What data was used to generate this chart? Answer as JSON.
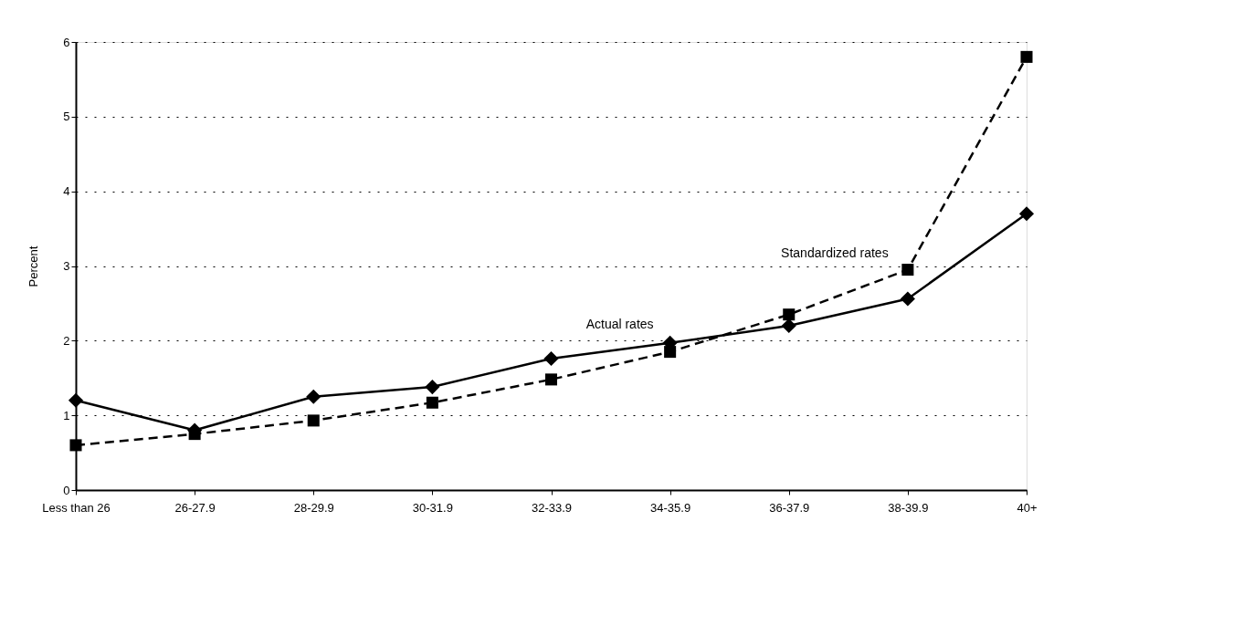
{
  "chart_data": {
    "type": "line",
    "ylabel": "Percent",
    "categories": [
      "Less than 26",
      "26-27.9",
      "28-29.9",
      "30-31.9",
      "32-33.9",
      "34-35.9",
      "36-37.9",
      "38-39.9",
      "40+"
    ],
    "series": [
      {
        "name": "Actual rates",
        "color": "#000000",
        "marker": "diamond",
        "line_style": "solid",
        "values": [
          1.2,
          0.8,
          1.25,
          1.38,
          1.76,
          1.97,
          2.2,
          2.56,
          3.7
        ]
      },
      {
        "name": "Standardized rates",
        "color": "#000000",
        "marker": "square",
        "line_style": "dashed",
        "values": [
          0.6,
          0.75,
          0.93,
          1.17,
          1.48,
          1.85,
          2.35,
          2.95,
          5.8
        ]
      }
    ],
    "ylim": [
      0,
      6
    ],
    "yticks": [
      0,
      1,
      2,
      3,
      4,
      5,
      6
    ],
    "grid": "y"
  }
}
